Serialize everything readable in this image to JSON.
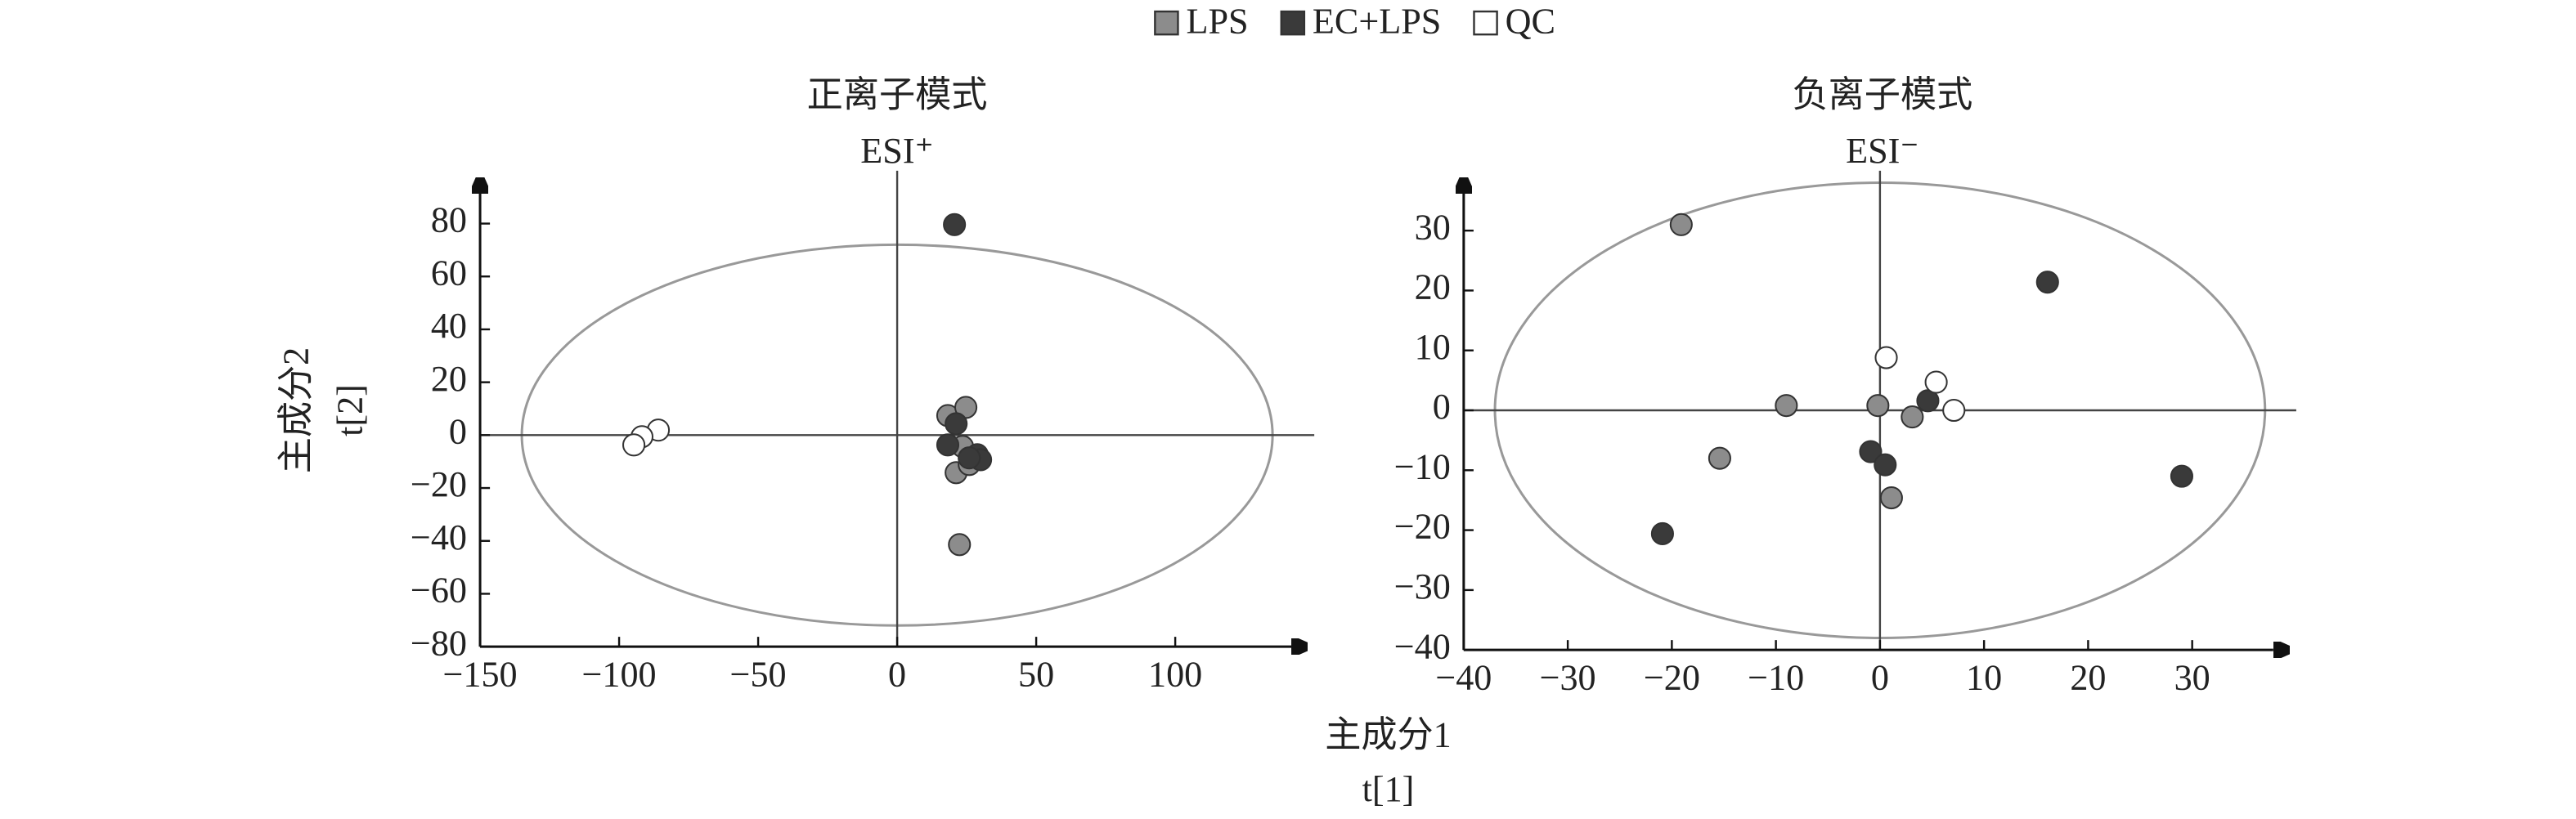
{
  "chart_data": [
    {
      "type": "scatter",
      "title": "正离子模式",
      "subtitle": "ESI⁺",
      "xlabel": {
        "name": "主成分1",
        "symbol": "t[1]"
      },
      "ylabel": {
        "name": "主成分2",
        "symbol": "t[2]"
      },
      "xlim": [
        -150,
        150
      ],
      "ylim": [
        -80,
        100
      ],
      "xticks": [
        {
          "value": -150,
          "label": "−150"
        },
        {
          "value": -100,
          "label": "−100"
        },
        {
          "value": -50,
          "label": "−50"
        },
        0,
        50,
        100
      ],
      "yticks": [
        80,
        60,
        40,
        20,
        0,
        {
          "value": -20,
          "label": "−20"
        },
        {
          "value": -40,
          "label": "−40"
        },
        {
          "value": -60,
          "label": "−60"
        },
        {
          "value": -80,
          "label": "−80"
        }
      ],
      "ellipse": {
        "rx": 135,
        "ry": 72
      },
      "series": [
        {
          "name": "LPS",
          "color": "#8c8c8c",
          "x": [
            18.2,
            24.7,
            21.2,
            22.4,
            25.9,
            23.5
          ],
          "values": [
            7.4,
            10.5,
            -14.2,
            -41.4,
            -11.1,
            -4.3
          ]
        },
        {
          "name": "EC+LPS",
          "color": "#3a3a3a",
          "x": [
            20.6,
            21.2,
            18.2,
            28.8,
            30,
            25.9
          ],
          "values": [
            79.6,
            4.3,
            -3.7,
            -7.4,
            -9.3,
            -8.6
          ]
        },
        {
          "name": "QC",
          "color": "#ffffff",
          "x": [
            -85.9,
            -91.8,
            -94.7
          ],
          "values": [
            1.9,
            -0.6,
            -3.7
          ]
        }
      ]
    },
    {
      "type": "scatter",
      "title": "负离子模式",
      "subtitle": "ESI⁻",
      "xlim": [
        -40,
        40
      ],
      "ylim": [
        -40,
        40
      ],
      "xticks": [
        {
          "value": -40,
          "label": "−40"
        },
        {
          "value": -30,
          "label": "−30"
        },
        {
          "value": -20,
          "label": "−20"
        },
        {
          "value": -10,
          "label": "−10"
        },
        0,
        10,
        20,
        30
      ],
      "yticks": [
        30,
        20,
        10,
        0,
        {
          "value": -10,
          "label": "−10"
        },
        {
          "value": -20,
          "label": "−20"
        },
        {
          "value": -30,
          "label": "−30"
        },
        {
          "value": -40,
          "label": "−40"
        }
      ],
      "ellipse": {
        "rx": 37,
        "ry": 38
      },
      "series": [
        {
          "color": "#8c8c8c",
          "x": [
            -19.1,
            -9,
            -15.4,
            -0.2,
            3.1,
            1.1
          ],
          "values": [
            31,
            0.8,
            -8,
            0.8,
            -1.1,
            -14.6
          ]
        },
        {
          "color": "#3a3a3a",
          "x": [
            16.1,
            -20.9,
            -0.9,
            0.5,
            4.6,
            29
          ],
          "values": [
            21.4,
            -20.6,
            -6.9,
            -9.1,
            1.6,
            -11
          ]
        },
        {
          "color": "#ffffff",
          "x": [
            0.6,
            5.4,
            7.1
          ],
          "values": [
            8.8,
            4.7,
            0
          ]
        }
      ]
    }
  ]
}
